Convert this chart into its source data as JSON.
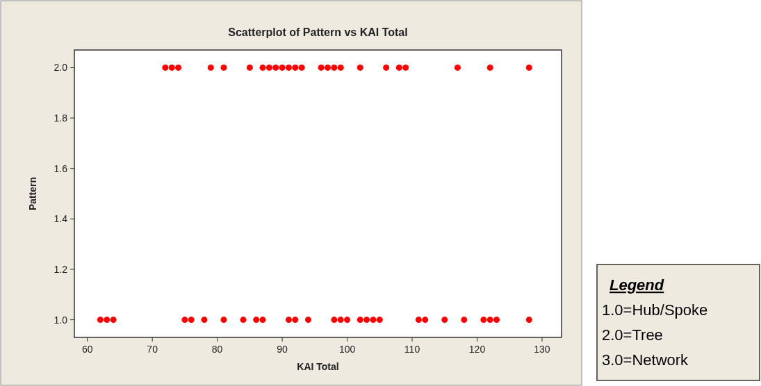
{
  "chart_data": {
    "type": "scatter",
    "title": "Scatterplot of Pattern vs KAI Total",
    "xlabel": "KAI Total",
    "ylabel": "Pattern",
    "xlim": [
      58,
      133
    ],
    "xticks": [
      60,
      70,
      80,
      90,
      100,
      110,
      120,
      130
    ],
    "ylim": [
      0.93,
      2.07
    ],
    "yticks": [
      {
        "value": 1,
        "label": "1.0"
      },
      {
        "value": 1.2,
        "label": "1.2"
      },
      {
        "value": 1.4,
        "label": "1.4"
      },
      {
        "value": 1.6,
        "label": "1.6"
      },
      {
        "value": 1.8,
        "label": "1.8"
      },
      {
        "value": 2,
        "label": "2.0"
      }
    ],
    "marker": "circle",
    "grid": false,
    "series": [
      {
        "color": "#ff0000",
        "x": [
          72,
          73,
          74,
          79,
          81,
          85,
          87,
          88,
          89,
          90,
          91,
          92,
          93,
          96,
          97,
          98,
          99,
          102,
          106,
          108,
          109,
          117,
          122,
          128,
          62,
          63,
          64,
          75,
          76,
          78,
          81,
          84,
          86,
          87,
          91,
          92,
          94,
          98,
          99,
          100,
          102,
          103,
          104,
          105,
          111,
          112,
          115,
          118,
          121,
          122,
          123,
          128
        ],
        "values": [
          2,
          2,
          2,
          2,
          2,
          2,
          2,
          2,
          2,
          2,
          2,
          2,
          2,
          2,
          2,
          2,
          2,
          2,
          2,
          2,
          2,
          2,
          2,
          2,
          1,
          1,
          1,
          1,
          1,
          1,
          1,
          1,
          1,
          1,
          1,
          1,
          1,
          1,
          1,
          1,
          1,
          1,
          1,
          1,
          1,
          1,
          1,
          1,
          1,
          1,
          1,
          1
        ]
      }
    ],
    "annotations": [
      "Legend",
      "1.0=Hub/Spoke",
      "2.0=Tree",
      "3.0=Network"
    ]
  }
}
